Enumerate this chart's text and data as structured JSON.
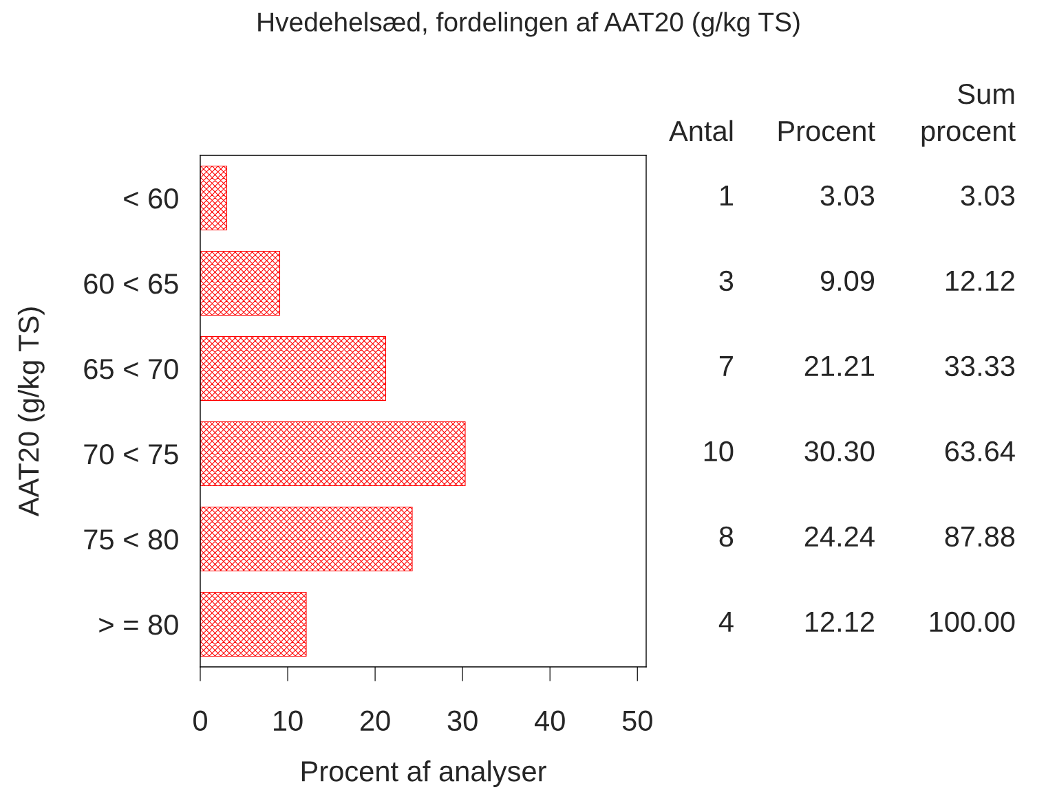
{
  "chart_data": [
    {
      "type": "bar",
      "orientation": "horizontal",
      "title": "Hvedehelsæd, fordelingen af AAT20 (g/kg TS)",
      "xlabel": "Procent af analyser",
      "ylabel": "AAT20 (g/kg TS)",
      "categories": [
        "< 60",
        "60 < 65",
        "65 < 70",
        "70 < 75",
        "75 < 80",
        "> = 80"
      ],
      "values": [
        3.03,
        9.09,
        21.21,
        30.3,
        24.24,
        12.12
      ],
      "color": "#ff0000",
      "xlim": [
        0,
        51
      ],
      "xticks": [
        0,
        10,
        20,
        30,
        40,
        50
      ],
      "grid": false,
      "legend": false
    },
    {
      "type": "other",
      "annotations": [
        "Antal",
        "Procent",
        "Sum\nprocent",
        "1",
        "3.03",
        "3.03",
        "3",
        "9.09",
        "12.12",
        "7",
        "21.21",
        "33.33",
        "10",
        "30.30",
        "63.64",
        "8",
        "24.24",
        "87.88",
        "4",
        "12.12",
        "100.00"
      ]
    }
  ]
}
